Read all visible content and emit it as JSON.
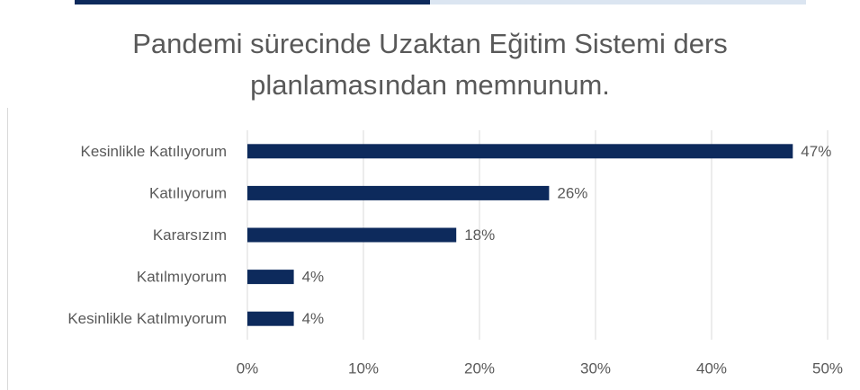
{
  "chart_data": {
    "type": "bar",
    "orientation": "horizontal",
    "title": "Pandemi sürecinde Uzaktan Eğitim Sistemi ders planlamasından memnunum.",
    "categories": [
      "Kesinlikle Katılıyorum",
      "Katılıyorum",
      "Kararsızım",
      "Katılmıyorum",
      "Kesinlikle Katılmıyorum"
    ],
    "values": [
      47,
      26,
      18,
      4,
      4
    ],
    "value_labels": [
      "47%",
      "26%",
      "18%",
      "4%",
      "4%"
    ],
    "color": "#0d2a5c",
    "xlim": [
      0,
      50
    ],
    "xticks": [
      {
        "value": 0,
        "label": "0%"
      },
      {
        "value": 10,
        "label": "10%"
      },
      {
        "value": 20,
        "label": "20%"
      },
      {
        "value": 30,
        "label": "30%"
      },
      {
        "value": 40,
        "label": "40%"
      },
      {
        "value": 50,
        "label": "50%"
      }
    ],
    "grid": true
  }
}
